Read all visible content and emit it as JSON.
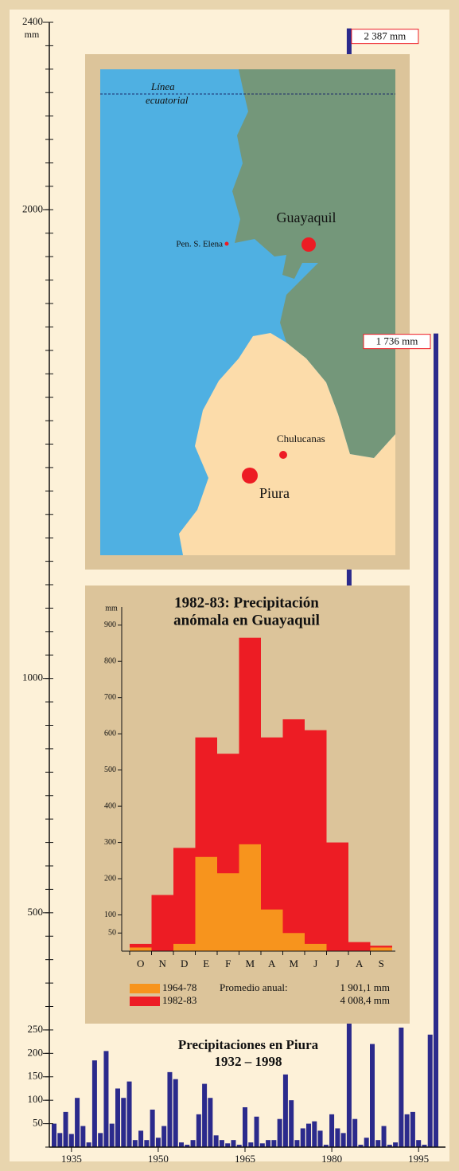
{
  "chart_data": {
    "type": "bar",
    "title": "Precipitaciones en Piura",
    "subtitle": "1932 – 1998",
    "y_label": "mm",
    "x": [
      1932,
      1933,
      1934,
      1935,
      1936,
      1937,
      1938,
      1939,
      1940,
      1941,
      1942,
      1943,
      1944,
      1945,
      1946,
      1947,
      1948,
      1949,
      1950,
      1951,
      1952,
      1953,
      1954,
      1955,
      1956,
      1957,
      1958,
      1959,
      1960,
      1961,
      1962,
      1963,
      1964,
      1965,
      1966,
      1967,
      1968,
      1969,
      1970,
      1971,
      1972,
      1973,
      1974,
      1975,
      1976,
      1977,
      1978,
      1979,
      1980,
      1981,
      1982,
      1983,
      1984,
      1985,
      1986,
      1987,
      1988,
      1989,
      1990,
      1991,
      1992,
      1993,
      1994,
      1995,
      1996,
      1997,
      1998
    ],
    "values": [
      50,
      30,
      75,
      28,
      105,
      45,
      10,
      185,
      30,
      205,
      50,
      125,
      105,
      140,
      15,
      35,
      15,
      80,
      20,
      45,
      160,
      145,
      10,
      5,
      15,
      70,
      135,
      105,
      25,
      15,
      8,
      15,
      5,
      85,
      10,
      65,
      8,
      15,
      15,
      60,
      155,
      100,
      15,
      40,
      50,
      55,
      35,
      5,
      70,
      40,
      30,
      2387,
      60,
      5,
      20,
      220,
      15,
      45,
      5,
      10,
      255,
      70,
      75,
      15,
      5,
      240,
      1736
    ],
    "value_labels": [
      null,
      null,
      null,
      null,
      null,
      null,
      null,
      null,
      null,
      null,
      null,
      null,
      null,
      null,
      null,
      null,
      null,
      null,
      null,
      null,
      null,
      null,
      null,
      null,
      null,
      null,
      null,
      null,
      null,
      null,
      null,
      null,
      null,
      null,
      null,
      null,
      null,
      null,
      null,
      null,
      null,
      null,
      null,
      null,
      null,
      null,
      null,
      null,
      null,
      null,
      null,
      "2 387 mm",
      null,
      null,
      null,
      null,
      null,
      null,
      null,
      null,
      null,
      null,
      null,
      null,
      null,
      null,
      "1 736 mm"
    ],
    "color": "#2b2a8c",
    "xlim": [
      1932,
      1998
    ],
    "xticks": [
      1935,
      1950,
      1965,
      1980,
      1995
    ],
    "ylim": [
      0,
      2400
    ],
    "yticks": [
      50,
      100,
      150,
      200,
      250,
      500,
      1000,
      2000,
      2400
    ],
    "y_minor_ticks": [
      0,
      50,
      100,
      150,
      200,
      250,
      300,
      350,
      400,
      450,
      500,
      550,
      600,
      650,
      700,
      750,
      800,
      850,
      900,
      950,
      1000,
      1050,
      1100,
      1150,
      1200,
      1250,
      1300,
      1350,
      1400,
      1450,
      1500,
      1550,
      1600,
      1650,
      1700,
      1750,
      1800,
      1850,
      1900,
      1950,
      2000,
      2050,
      2100,
      2150,
      2200,
      2250,
      2300,
      2350,
      2400
    ]
  },
  "map": {
    "equator_lines": [
      "Línea",
      "ecuatorial"
    ],
    "cities": [
      "Guayaquil",
      "Pen. S. Elena",
      "Chulucanas",
      "Piura"
    ]
  },
  "inset": {
    "type": "bar",
    "title_lines": [
      "1982-83: Precipitación",
      "anómala en Guayaquil"
    ],
    "y_label": "mm",
    "categories": [
      "O",
      "N",
      "D",
      "E",
      "F",
      "M",
      "A",
      "M",
      "J",
      "J",
      "A",
      "S"
    ],
    "series": [
      {
        "name": "1982-83",
        "color": "#ed1c24",
        "values": [
          20,
          155,
          285,
          590,
          545,
          865,
          590,
          640,
          610,
          300,
          25,
          15
        ]
      },
      {
        "name": "1964-78",
        "color": "#f7941d",
        "values": [
          10,
          0,
          20,
          260,
          215,
          295,
          115,
          50,
          20,
          0,
          0,
          10
        ]
      }
    ],
    "ylim": [
      0,
      950
    ],
    "yticks": [
      50,
      100,
      200,
      300,
      400,
      500,
      600,
      700,
      800,
      900
    ],
    "legend_label": "Promedio anual:",
    "annual_means": [
      "4 008,4 mm",
      "1 901,1 mm"
    ]
  }
}
